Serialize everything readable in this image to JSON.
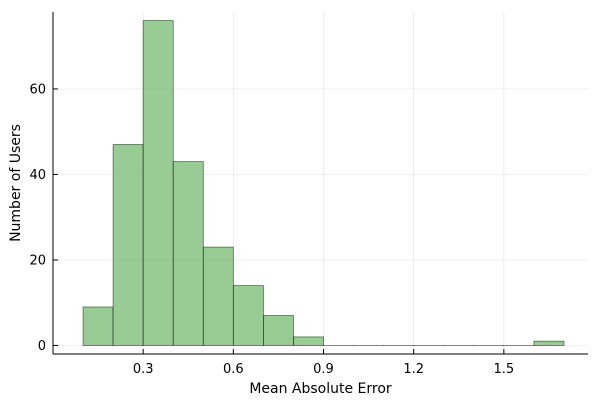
{
  "chart_data": {
    "type": "bar",
    "histogram": true,
    "bin_edges": [
      0.1,
      0.2,
      0.3,
      0.4,
      0.5,
      0.6,
      0.7,
      0.8,
      0.9,
      1.0,
      1.1,
      1.2,
      1.3,
      1.4,
      1.5,
      1.6,
      1.7
    ],
    "values": [
      9,
      47,
      76,
      43,
      23,
      14,
      7,
      2,
      0,
      0,
      0,
      0,
      0,
      0,
      0,
      1
    ],
    "xlabel": "Mean Absolute Error",
    "ylabel": "Number of Users",
    "xlim": [
      0.0,
      1.78
    ],
    "ylim": [
      -2,
      78
    ],
    "xticks": [
      0.3,
      0.6,
      0.9,
      1.2,
      1.5
    ],
    "xtick_labels": [
      "0.3",
      "0.6",
      "0.9",
      "1.2",
      "1.5"
    ],
    "yticks": [
      0,
      20,
      40,
      60
    ],
    "ytick_labels": [
      "0",
      "20",
      "40",
      "60"
    ],
    "grid": true,
    "legend": false,
    "colors": {
      "bar_fill": "#7fbf7b"
    }
  }
}
